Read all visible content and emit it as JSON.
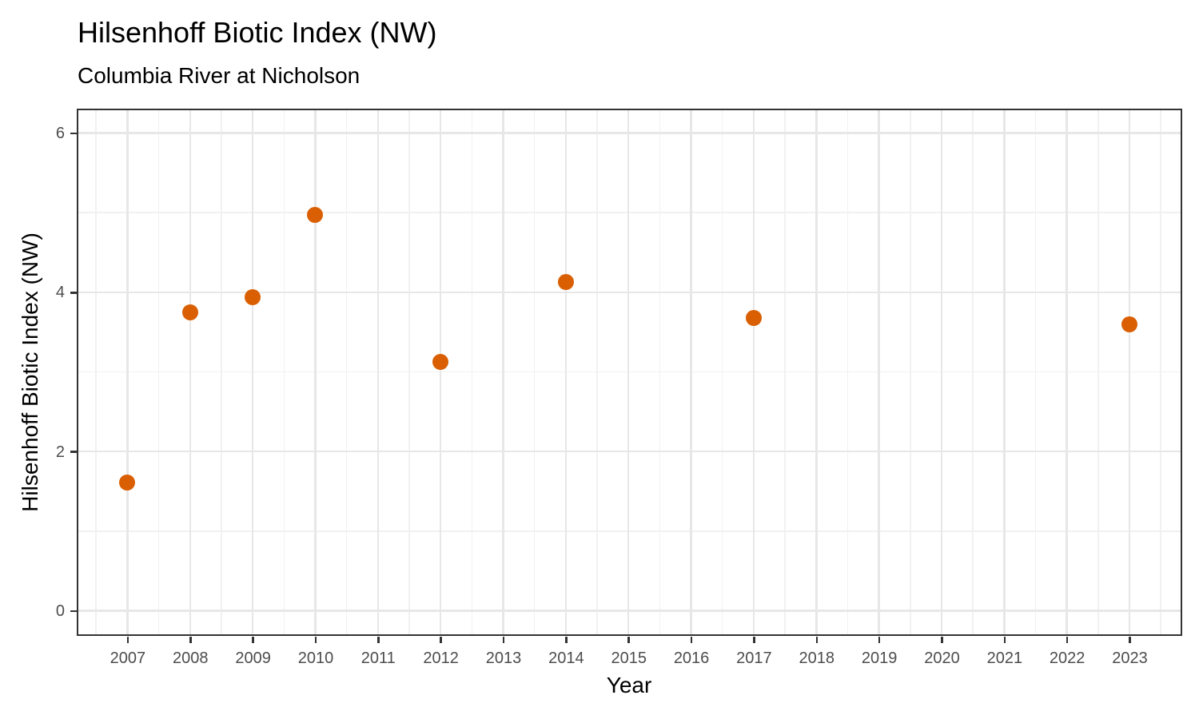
{
  "chart_data": {
    "type": "scatter",
    "title": "Hilsenhoff Biotic Index (NW)",
    "subtitle": "Columbia River at Nicholson",
    "xlabel": "Year",
    "ylabel": "Hilsenhoff Biotic Index (NW)",
    "x_ticks": [
      2007,
      2008,
      2009,
      2010,
      2011,
      2012,
      2013,
      2014,
      2015,
      2016,
      2017,
      2018,
      2019,
      2020,
      2021,
      2022,
      2023
    ],
    "y_ticks": [
      0,
      2,
      4,
      6
    ],
    "x_range": [
      2006.21,
      2023.81
    ],
    "y_range": [
      -0.29,
      6.29
    ],
    "grid": true,
    "legend_position": "none",
    "series": [
      {
        "name": "Hilsenhoff Biotic Index (NW)",
        "color": "#D95F02",
        "points": [
          {
            "x": 2007,
            "y": 1.61
          },
          {
            "x": 2008,
            "y": 3.75
          },
          {
            "x": 2009,
            "y": 3.94
          },
          {
            "x": 2010,
            "y": 4.97
          },
          {
            "x": 2012,
            "y": 3.13
          },
          {
            "x": 2014,
            "y": 4.13
          },
          {
            "x": 2017,
            "y": 3.68
          },
          {
            "x": 2023,
            "y": 3.6
          }
        ]
      }
    ],
    "colors": {
      "point": "#D95F02",
      "panel_border": "#333333",
      "tick": "#333333",
      "tick_label": "#4D4D4D",
      "grid_major": "#E7E7E7",
      "grid_minor": "#F1F1F1",
      "background": "#FFFFFF"
    }
  }
}
